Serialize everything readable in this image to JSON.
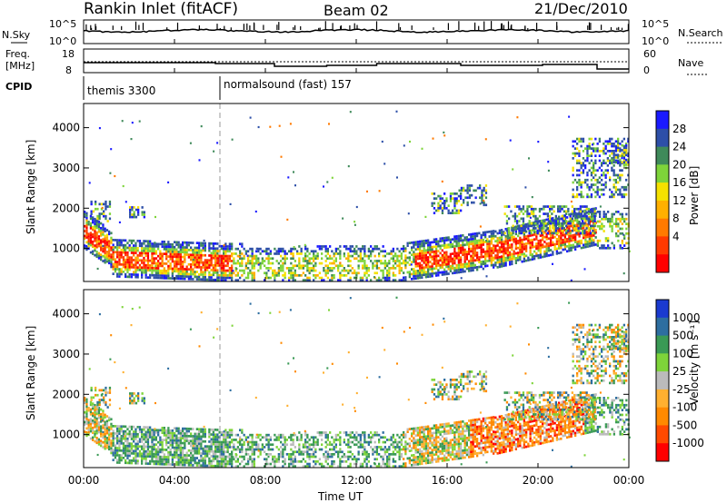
{
  "header": {
    "station": "Rankin Inlet (fitACF)",
    "beam": "Beam 02",
    "date": "21/Dec/2010"
  },
  "noise_panel": {
    "left_label": "N.Sky",
    "right_label": "N.Search",
    "ticks": [
      "10^5",
      "10^0"
    ]
  },
  "freq_panel": {
    "left_label_line1": "Freq.",
    "left_label_line2": "[MHz]",
    "right_label": "Nave",
    "left_ticks": [
      "18",
      "8"
    ],
    "right_ticks": [
      "60",
      "0"
    ]
  },
  "cpid": {
    "label": "CPID",
    "programs": [
      {
        "name": "themis 3300",
        "start_hour": 0
      },
      {
        "name": "normalsound (fast) 157",
        "start_hour": 6
      }
    ]
  },
  "colors": {
    "power_scale": [
      "#1a1aff",
      "#2d4fa8",
      "#3f8a5a",
      "#7ed43a",
      "#f5e100",
      "#ffb000",
      "#ff7a00",
      "#ff3a00",
      "#ff0000"
    ],
    "velocity_scale": [
      "#ff0000",
      "#ff4a00",
      "#ff8a00",
      "#ffb030",
      "#bbbbbb",
      "#7ed43a",
      "#3a9a55",
      "#2d6ea0",
      "#1a3ad0"
    ]
  },
  "chart_data": [
    {
      "type": "heatmap",
      "title": "",
      "ylabel": "Slant Range [km]",
      "xlabel": "",
      "x_ticks": [
        "00:00",
        "04:00",
        "08:00",
        "12:00",
        "16:00",
        "20:00",
        "00:00"
      ],
      "y_ticks": [
        "1000",
        "2000",
        "3000",
        "4000"
      ],
      "ylim": [
        180,
        4600
      ],
      "xlim_hours": [
        0,
        24
      ],
      "colorbar_label": "Power [dB]",
      "colorbar_ticks": [
        "28",
        "24",
        "20",
        "16",
        "12",
        "8",
        "4"
      ],
      "colorbar_range": [
        0,
        30
      ]
    },
    {
      "type": "heatmap",
      "title": "",
      "ylabel": "Slant Range [km]",
      "xlabel": "Time UT",
      "x_ticks": [
        "00:00",
        "04:00",
        "08:00",
        "12:00",
        "16:00",
        "20:00",
        "00:00"
      ],
      "y_ticks": [
        "1000",
        "2000",
        "3000",
        "4000"
      ],
      "ylim": [
        180,
        4600
      ],
      "xlim_hours": [
        0,
        24
      ],
      "colorbar_label": "Velocity [m s⁻¹]",
      "colorbar_ticks": [
        "1000",
        "500",
        "100",
        "25",
        "-25",
        "-100",
        "-500",
        "-1000"
      ],
      "colorbar_range": [
        -1000,
        1000
      ]
    }
  ]
}
